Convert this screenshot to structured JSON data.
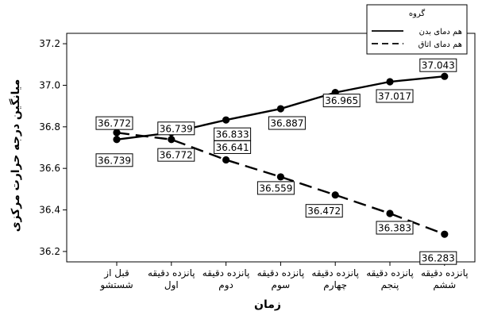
{
  "chart_data": {
    "type": "line",
    "title": "",
    "xlabel": "زمان",
    "ylabel": "میانگین درجه حرارت مرکزی",
    "ylim": [
      36.15,
      37.25
    ],
    "yticks": [
      36.2,
      36.4,
      36.6,
      36.8,
      37.0,
      37.2
    ],
    "ytick_labels": [
      "36.2",
      "36.4",
      "36.6",
      "36.8",
      "37.0",
      "37.2"
    ],
    "grid": false,
    "legend_position": "top-right",
    "legend_title": "گروه",
    "categories": [
      [
        "قبل از",
        "شستشو"
      ],
      [
        "پانزده دقیقه",
        "اول"
      ],
      [
        "پانزده دقیقه",
        "دوم"
      ],
      [
        "پانزده دقیقه",
        "سوم"
      ],
      [
        "پانزده دقیقه",
        "چهارم"
      ],
      [
        "پانزده دقیقه",
        "پنجم"
      ],
      [
        "پانزده دقیقه",
        "ششم"
      ]
    ],
    "series": [
      {
        "name": "هم دمای بدن",
        "line_style": "solid",
        "values": [
          36.739,
          36.772,
          36.833,
          36.887,
          36.965,
          37.017,
          37.043
        ],
        "value_labels": [
          "36.739",
          "36.772",
          "36.833",
          "36.887",
          "36.965",
          "37.017",
          "37.043"
        ]
      },
      {
        "name": "هم دمای اتاق",
        "line_style": "dashed",
        "values": [
          36.772,
          36.739,
          36.641,
          36.559,
          36.472,
          36.383,
          36.283
        ],
        "value_labels": [
          "36.772",
          "36.739",
          "36.641",
          "36.559",
          "36.472",
          "36.383",
          "36.283"
        ]
      }
    ]
  }
}
